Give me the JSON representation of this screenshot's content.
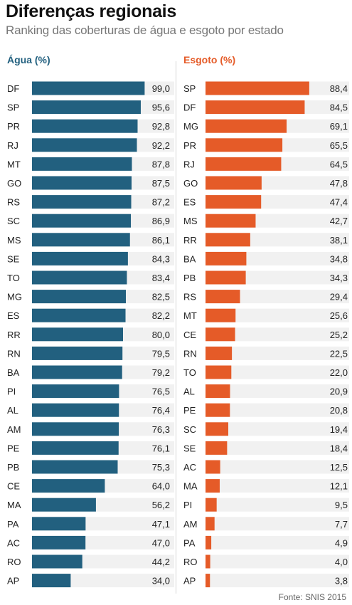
{
  "header": {
    "title": "Diferenças regionais",
    "subtitle": "Ranking das coberturas de água e esgoto por estado"
  },
  "source": "Fonte: SNIS 2015",
  "colors": {
    "agua": "#22607f",
    "esgoto": "#e55b28",
    "track": "#f1f1f1"
  },
  "chart_data": [
    {
      "type": "bar",
      "orientation": "horizontal",
      "title": "Água (%)",
      "xlim": [
        0,
        100
      ],
      "grid": false,
      "categories": [
        "DF",
        "SP",
        "PR",
        "RJ",
        "MT",
        "GO",
        "RS",
        "SC",
        "MS",
        "SE",
        "TO",
        "MG",
        "ES",
        "RR",
        "RN",
        "BA",
        "PI",
        "AL",
        "AM",
        "PE",
        "PB",
        "CE",
        "MA",
        "PA",
        "AC",
        "RO",
        "AP"
      ],
      "values": [
        99.0,
        95.6,
        92.8,
        92.2,
        87.8,
        87.5,
        87.2,
        86.9,
        86.1,
        84.3,
        83.4,
        82.5,
        82.2,
        80.0,
        79.5,
        79.2,
        76.5,
        76.4,
        76.3,
        76.1,
        75.3,
        64.0,
        56.2,
        47.1,
        47.0,
        44.2,
        34.0
      ],
      "value_labels": [
        "99,0",
        "95,6",
        "92,8",
        "92,2",
        "87,8",
        "87,5",
        "87,2",
        "86,9",
        "86,1",
        "84,3",
        "83,4",
        "82,5",
        "82,2",
        "80,0",
        "79,5",
        "79,2",
        "76,5",
        "76,4",
        "76,3",
        "76,1",
        "75,3",
        "64,0",
        "56,2",
        "47,1",
        "47,0",
        "44,2",
        "34,0"
      ]
    },
    {
      "type": "bar",
      "orientation": "horizontal",
      "title": "Esgoto (%)",
      "xlim": [
        0,
        100
      ],
      "grid": false,
      "categories": [
        "SP",
        "DF",
        "MG",
        "PR",
        "RJ",
        "GO",
        "ES",
        "MS",
        "RR",
        "BA",
        "PB",
        "RS",
        "MT",
        "CE",
        "RN",
        "TO",
        "AL",
        "PE",
        "SC",
        "SE",
        "AC",
        "MA",
        "PI",
        "AM",
        "PA",
        "RO",
        "AP"
      ],
      "values": [
        88.4,
        84.5,
        69.1,
        65.5,
        64.5,
        47.8,
        47.4,
        42.7,
        38.1,
        34.8,
        34.3,
        29.4,
        25.6,
        25.2,
        22.5,
        22.0,
        20.9,
        20.8,
        19.4,
        18.4,
        12.5,
        12.1,
        9.5,
        7.7,
        4.9,
        4.0,
        3.8
      ],
      "value_labels": [
        "88,4",
        "84,5",
        "69,1",
        "65,5",
        "64,5",
        "47,8",
        "47,4",
        "42,7",
        "38,1",
        "34,8",
        "34,3",
        "29,4",
        "25,6",
        "25,2",
        "22,5",
        "22,0",
        "20,9",
        "20,8",
        "19,4",
        "18,4",
        "12,5",
        "12,1",
        "9,5",
        "7,7",
        "4,9",
        "4,0",
        "3,8"
      ]
    }
  ]
}
